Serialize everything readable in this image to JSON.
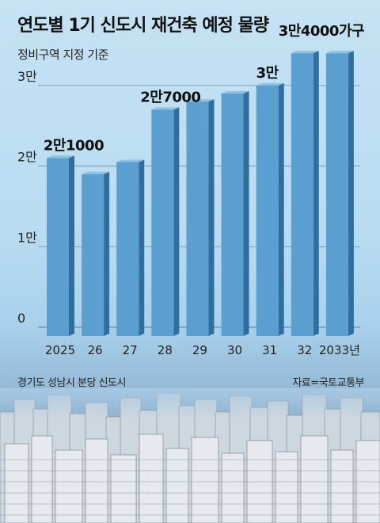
{
  "title": "연도별 1기 신도시 재건축 예정 물량",
  "subtitle": "정비구역 지정 기준",
  "footer": {
    "photo_caption": "경기도 성남시 분당 신도시",
    "source": "자료=국토교통부"
  },
  "colors": {
    "bar_front": "#5b9fd0",
    "bar_side": "#2f6e9e",
    "bar_top": "#8cc2e6",
    "gridline": "#6d8aa3"
  },
  "chart_data": {
    "type": "bar",
    "categories": [
      "2025",
      "26",
      "27",
      "28",
      "29",
      "30",
      "31",
      "32",
      "2033년"
    ],
    "values": [
      21000,
      19000,
      20500,
      27000,
      28000,
      29000,
      30000,
      34000,
      34000
    ],
    "ylim": [
      0,
      35000
    ],
    "y_ticks": [
      {
        "value": 0,
        "label": "0"
      },
      {
        "value": 10000,
        "label": "1만"
      },
      {
        "value": 20000,
        "label": "2만"
      },
      {
        "value": 30000,
        "label": "3만"
      }
    ],
    "annotations": [
      {
        "index": 0,
        "text": "2만1000"
      },
      {
        "index": 3,
        "text": "2만7000"
      },
      {
        "index": 6,
        "text": "3만"
      },
      {
        "index": 7,
        "text": "3만4000가구"
      }
    ],
    "grid": true
  }
}
